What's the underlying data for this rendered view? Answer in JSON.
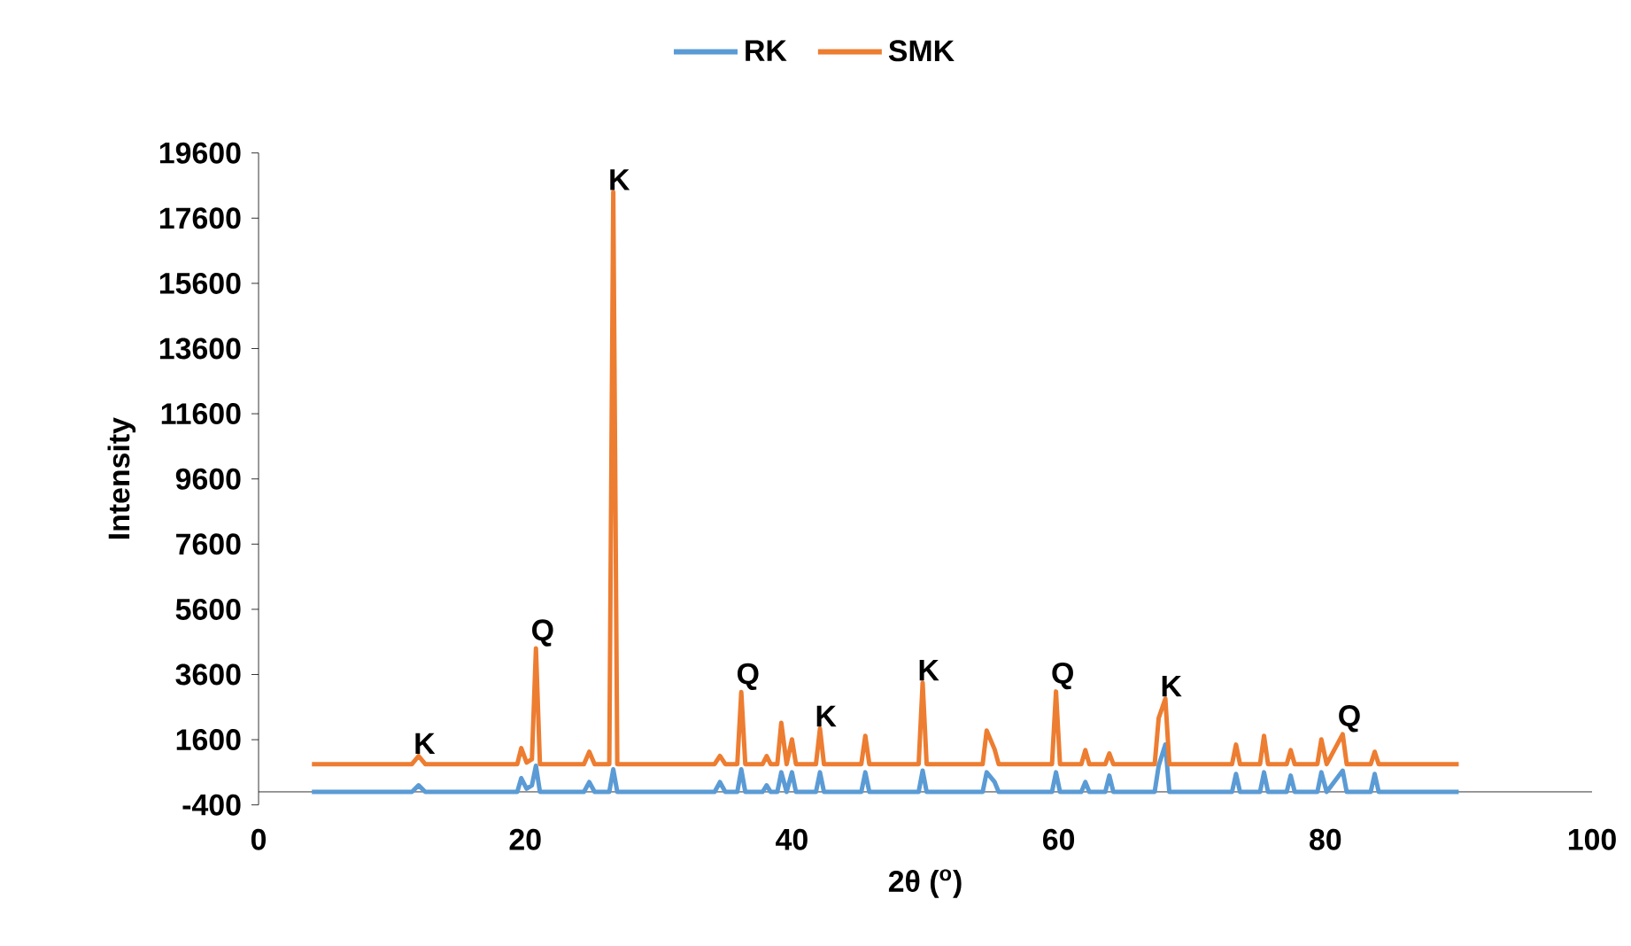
{
  "chart_data": {
    "type": "line",
    "xlabel": "2θ ($^{o}$)",
    "ylabel": "Intensity",
    "x": [
      4,
      11.5,
      12,
      12.5,
      19.4,
      19.7,
      20.1,
      20.5,
      20.8,
      21.1,
      24.4,
      24.8,
      25.2,
      26.3,
      26.6,
      26.9,
      34.2,
      34.6,
      35,
      35.9,
      36.2,
      36.5,
      37.8,
      38.1,
      38.4,
      38.9,
      39.2,
      39.6,
      40,
      40.3,
      41.8,
      42.1,
      42.4,
      45.2,
      45.5,
      45.8,
      49.5,
      49.8,
      50.1,
      54.3,
      54.6,
      55.2,
      55.5,
      59.5,
      59.8,
      60.1,
      61.7,
      62,
      62.3,
      63.5,
      63.8,
      64.1,
      67.2,
      67.5,
      68,
      68.3,
      73,
      73.3,
      73.6,
      75.1,
      75.4,
      75.7,
      77.1,
      77.4,
      77.7,
      79.4,
      79.7,
      80.1,
      81.3,
      81.6,
      83.4,
      83.7,
      84,
      90
    ],
    "series": [
      {
        "name": "RK",
        "color": "#5b9bd5",
        "values": [
          0,
          0,
          200,
          0,
          0,
          420,
          100,
          200,
          800,
          0,
          0,
          300,
          0,
          0,
          690,
          0,
          0,
          300,
          0,
          0,
          690,
          0,
          0,
          200,
          0,
          0,
          600,
          0,
          600,
          0,
          0,
          600,
          0,
          0,
          600,
          0,
          0,
          650,
          0,
          0,
          600,
          300,
          0,
          0,
          600,
          0,
          0,
          300,
          0,
          0,
          500,
          0,
          0,
          800,
          1450,
          0,
          0,
          550,
          0,
          0,
          600,
          0,
          0,
          500,
          0,
          0,
          600,
          0,
          650,
          0,
          0,
          550,
          0,
          0
        ]
      },
      {
        "name": "SMK",
        "color": "#ed7d31",
        "values": [
          850,
          850,
          1100,
          850,
          850,
          1340,
          900,
          1000,
          4400,
          850,
          850,
          1230,
          850,
          850,
          18400,
          850,
          850,
          1100,
          850,
          850,
          3060,
          850,
          850,
          1100,
          850,
          850,
          2120,
          850,
          1610,
          850,
          850,
          1940,
          850,
          850,
          1720,
          850,
          850,
          3350,
          850,
          850,
          1880,
          1300,
          850,
          850,
          3080,
          850,
          850,
          1280,
          850,
          850,
          1180,
          850,
          850,
          2260,
          2860,
          850,
          850,
          1450,
          850,
          850,
          1720,
          850,
          850,
          1280,
          850,
          850,
          1610,
          850,
          1770,
          850,
          850,
          1230,
          850,
          850
        ]
      }
    ],
    "xlim": [
      0,
      100
    ],
    "xticks": [
      0,
      20,
      40,
      60,
      80,
      100
    ],
    "ylim": [
      -400,
      19600
    ],
    "yticks": [
      -400,
      1600,
      3600,
      5600,
      7600,
      9600,
      11600,
      13600,
      15600,
      17600,
      19600
    ],
    "legend": "top",
    "grid": false,
    "marker": "none",
    "line_style": "solid",
    "annotations": [
      {
        "text": "K",
        "x": 12,
        "y": 1100
      },
      {
        "text": "Q",
        "x": 20.8,
        "y": 4400
      },
      {
        "text": "K",
        "x": 26.6,
        "y": 18400
      },
      {
        "text": "Q",
        "x": 36.2,
        "y": 3060
      },
      {
        "text": "K",
        "x": 42.1,
        "y": 1940
      },
      {
        "text": "K",
        "x": 49.8,
        "y": 3350
      },
      {
        "text": "Q",
        "x": 59.8,
        "y": 3080
      },
      {
        "text": "K",
        "x": 68,
        "y": 2860
      },
      {
        "text": "Q",
        "x": 81.3,
        "y": 1770
      }
    ]
  }
}
